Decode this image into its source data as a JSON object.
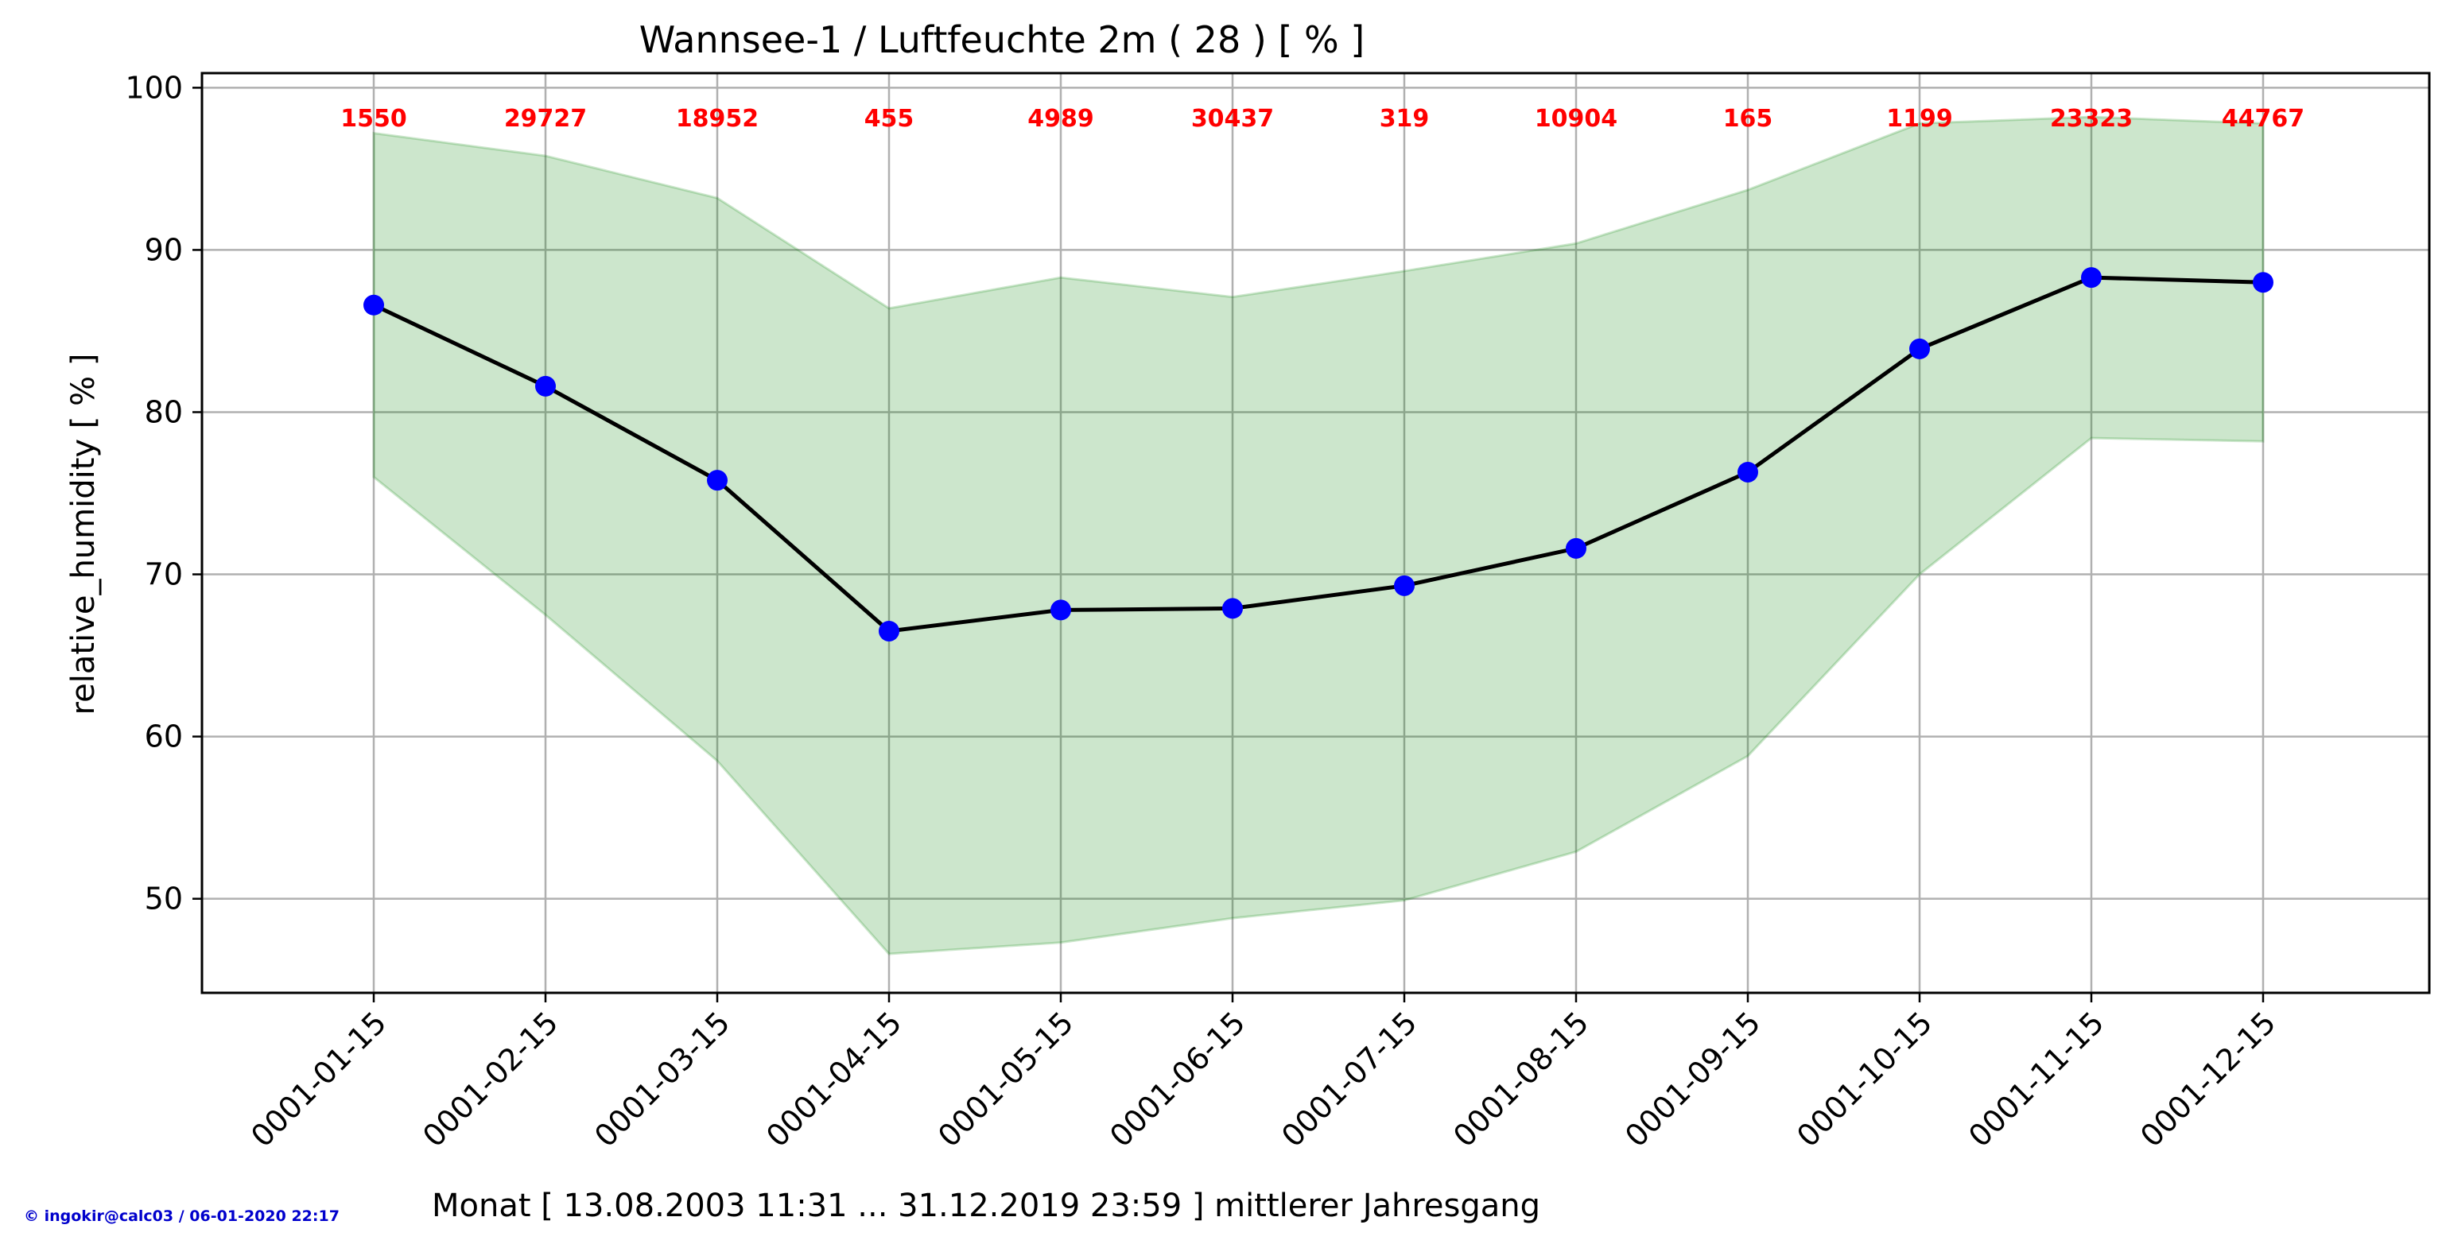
{
  "chart_data": {
    "type": "line",
    "title": "Wannsee-1 / Luftfeuchte 2m ( 28 ) [ % ]",
    "xlabel": "Monat [ 13.08.2003 11:31 ... 31.12.2019 23:59 ] mittlerer Jahresgang",
    "ylabel": "relative_humidity [ % ]",
    "ylim": [
      44.2,
      100.9
    ],
    "yticks": [
      50,
      60,
      70,
      80,
      90,
      100
    ],
    "grid": true,
    "categories": [
      "0001-01-15",
      "0001-02-15",
      "0001-03-15",
      "0001-04-15",
      "0001-05-15",
      "0001-06-15",
      "0001-07-15",
      "0001-08-15",
      "0001-09-15",
      "0001-10-15",
      "0001-11-15",
      "0001-12-15"
    ],
    "series": [
      {
        "values": [
          86.6,
          81.6,
          75.8,
          66.5,
          67.8,
          67.9,
          69.3,
          71.6,
          76.3,
          83.9,
          88.3,
          88.0
        ]
      }
    ],
    "band_upper": [
      97.2,
      95.8,
      93.2,
      86.4,
      88.3,
      87.1,
      88.7,
      90.4,
      93.7,
      97.8,
      98.2,
      97.8
    ],
    "band_lower": [
      76.0,
      67.5,
      58.5,
      46.6,
      47.3,
      48.8,
      49.9,
      52.9,
      58.8,
      70.0,
      78.4,
      78.2
    ],
    "counts": [
      "1550",
      "29727",
      "18952",
      "455",
      "4989",
      "30437",
      "319",
      "10904",
      "165",
      "1199",
      "23323",
      "44767"
    ],
    "colors": {
      "line": "#000000",
      "marker": "#0000ff",
      "band": "#008000",
      "counts": "#ff0000",
      "footer": "#0000cc"
    }
  },
  "footer": "© ingokir@calc03 / 06-01-2020 22:17"
}
